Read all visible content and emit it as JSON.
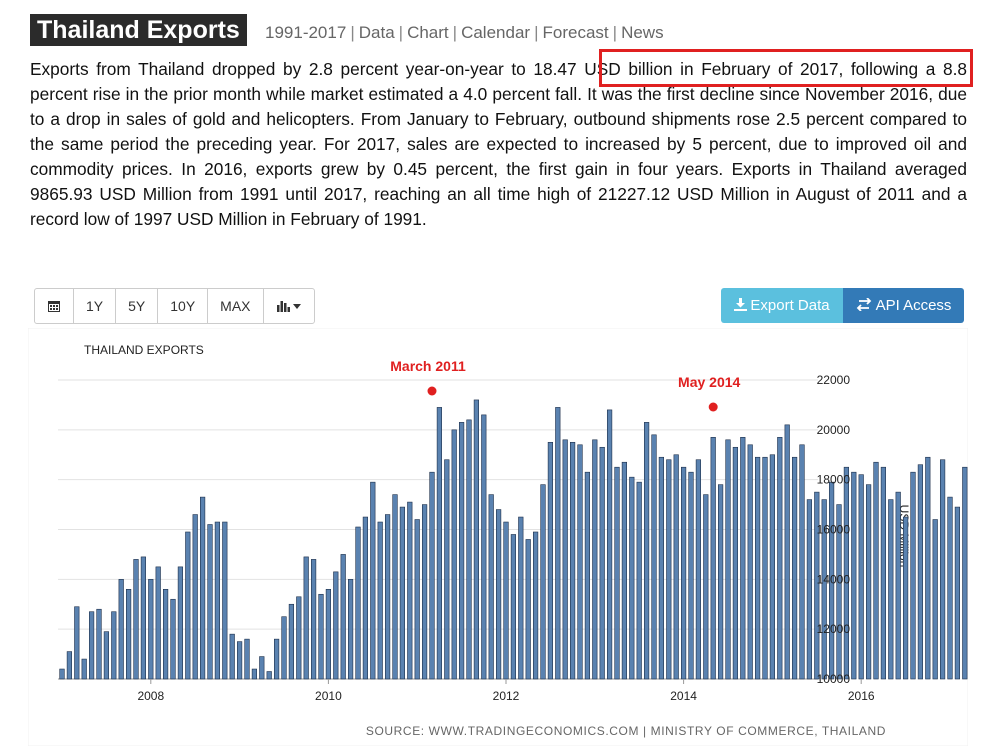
{
  "header": {
    "title": "Thailand Exports",
    "links": [
      "1991-2017",
      "Data",
      "Chart",
      "Calendar",
      "Forecast",
      "News"
    ]
  },
  "description": "Exports from Thailand dropped by 2.8 percent year-on-year to 18.47 USD billion in February of 2017, following a 8.8 percent rise in the prior month while market estimated a 4.0 percent fall. It was the first decline since November 2016, due to a drop in sales of gold and helicopters. From January to February, outbound shipments rose 2.5 percent compared to the same period the preceding year. For 2017, sales are expected to increased by 5 percent, due to improved oil and commodity prices. In 2016, exports grew by 0.45 percent, the first gain in four years. Exports in Thailand averaged 9865.93 USD Million from 1991 until 2017, reaching an all time high of 21227.12 USD Million in August of 2011 and a record low of 1997 USD Million in February of 1991.",
  "highlight_color": "#e02020",
  "toolbar": {
    "calendar_icon": "calendar-icon",
    "ranges": [
      "1Y",
      "5Y",
      "10Y",
      "MAX"
    ],
    "chart_type_icon": "bar-chart-icon",
    "export_label": "Export Data",
    "api_label": "API Access",
    "export_color": "#5bc0de",
    "api_color": "#337ab7"
  },
  "chart_data": {
    "type": "bar",
    "title": "THAILAND EXPORTS",
    "ylabel": "USD Million",
    "ylim": [
      10000,
      22000
    ],
    "yticks": [
      10000,
      12000,
      14000,
      16000,
      18000,
      20000,
      22000
    ],
    "xticks": [
      "2008",
      "2010",
      "2012",
      "2014",
      "2016"
    ],
    "grid": true,
    "bar_color": "#5a82b0",
    "annotation_color": "#e02020",
    "annotations": [
      {
        "label": "March 2011",
        "x": "2011-03"
      },
      {
        "label": "May 2014",
        "x": "2014-05"
      }
    ],
    "source": "SOURCE: WWW.TRADINGECONOMICS.COM | MINISTRY OF COMMERCE, THAILAND",
    "start": "2007-01",
    "values": [
      10400,
      11100,
      12900,
      10800,
      12700,
      12800,
      11900,
      12700,
      14000,
      13600,
      14800,
      14900,
      14000,
      14500,
      13600,
      13200,
      14500,
      15900,
      16600,
      17300,
      16200,
      16300,
      16300,
      11800,
      11500,
      11600,
      10400,
      10900,
      10300,
      11600,
      12500,
      13000,
      13300,
      14900,
      14800,
      13400,
      13600,
      14300,
      15000,
      14000,
      16100,
      16500,
      17900,
      16300,
      16600,
      17400,
      16900,
      17100,
      16400,
      17000,
      18300,
      20900,
      18800,
      20000,
      20300,
      20400,
      21200,
      20600,
      17400,
      16800,
      16300,
      15800,
      16500,
      15600,
      15900,
      17800,
      19500,
      20900,
      19600,
      19500,
      19400,
      18300,
      19600,
      19300,
      20800,
      18500,
      18700,
      18100,
      17900,
      20300,
      19800,
      18900,
      18800,
      19000,
      18500,
      18300,
      18800,
      17400,
      19700,
      17800,
      19600,
      19300,
      19700,
      19400,
      18900,
      18900,
      19000,
      19700,
      20200,
      18900,
      19400,
      17200,
      17500,
      17200,
      17900,
      17000,
      18500,
      18300,
      18200,
      17800,
      18700,
      18500,
      17200,
      17500,
      16500,
      18300,
      18600,
      18900,
      16400,
      18800,
      17300,
      16900,
      18500,
      19100,
      19400,
      18800,
      17700,
      18500,
      17300,
      17300,
      18500,
      17400,
      17300,
      19500,
      18900,
      18200,
      17400,
      18100,
      18200,
      17200,
      16400,
      18800,
      18500,
      18700,
      18000,
      17200,
      17500,
      17900,
      18700,
      18400,
      18100,
      18700,
      17000,
      18800,
      17800,
      17300,
      17800,
      17500,
      18300,
      17700,
      17400,
      17200,
      17900,
      18200,
      18300,
      16900,
      17600,
      18500,
      17200,
      18400,
      19000,
      18100,
      18800,
      17500,
      17900,
      17400,
      18000,
      18700,
      17300,
      18100
    ]
  }
}
